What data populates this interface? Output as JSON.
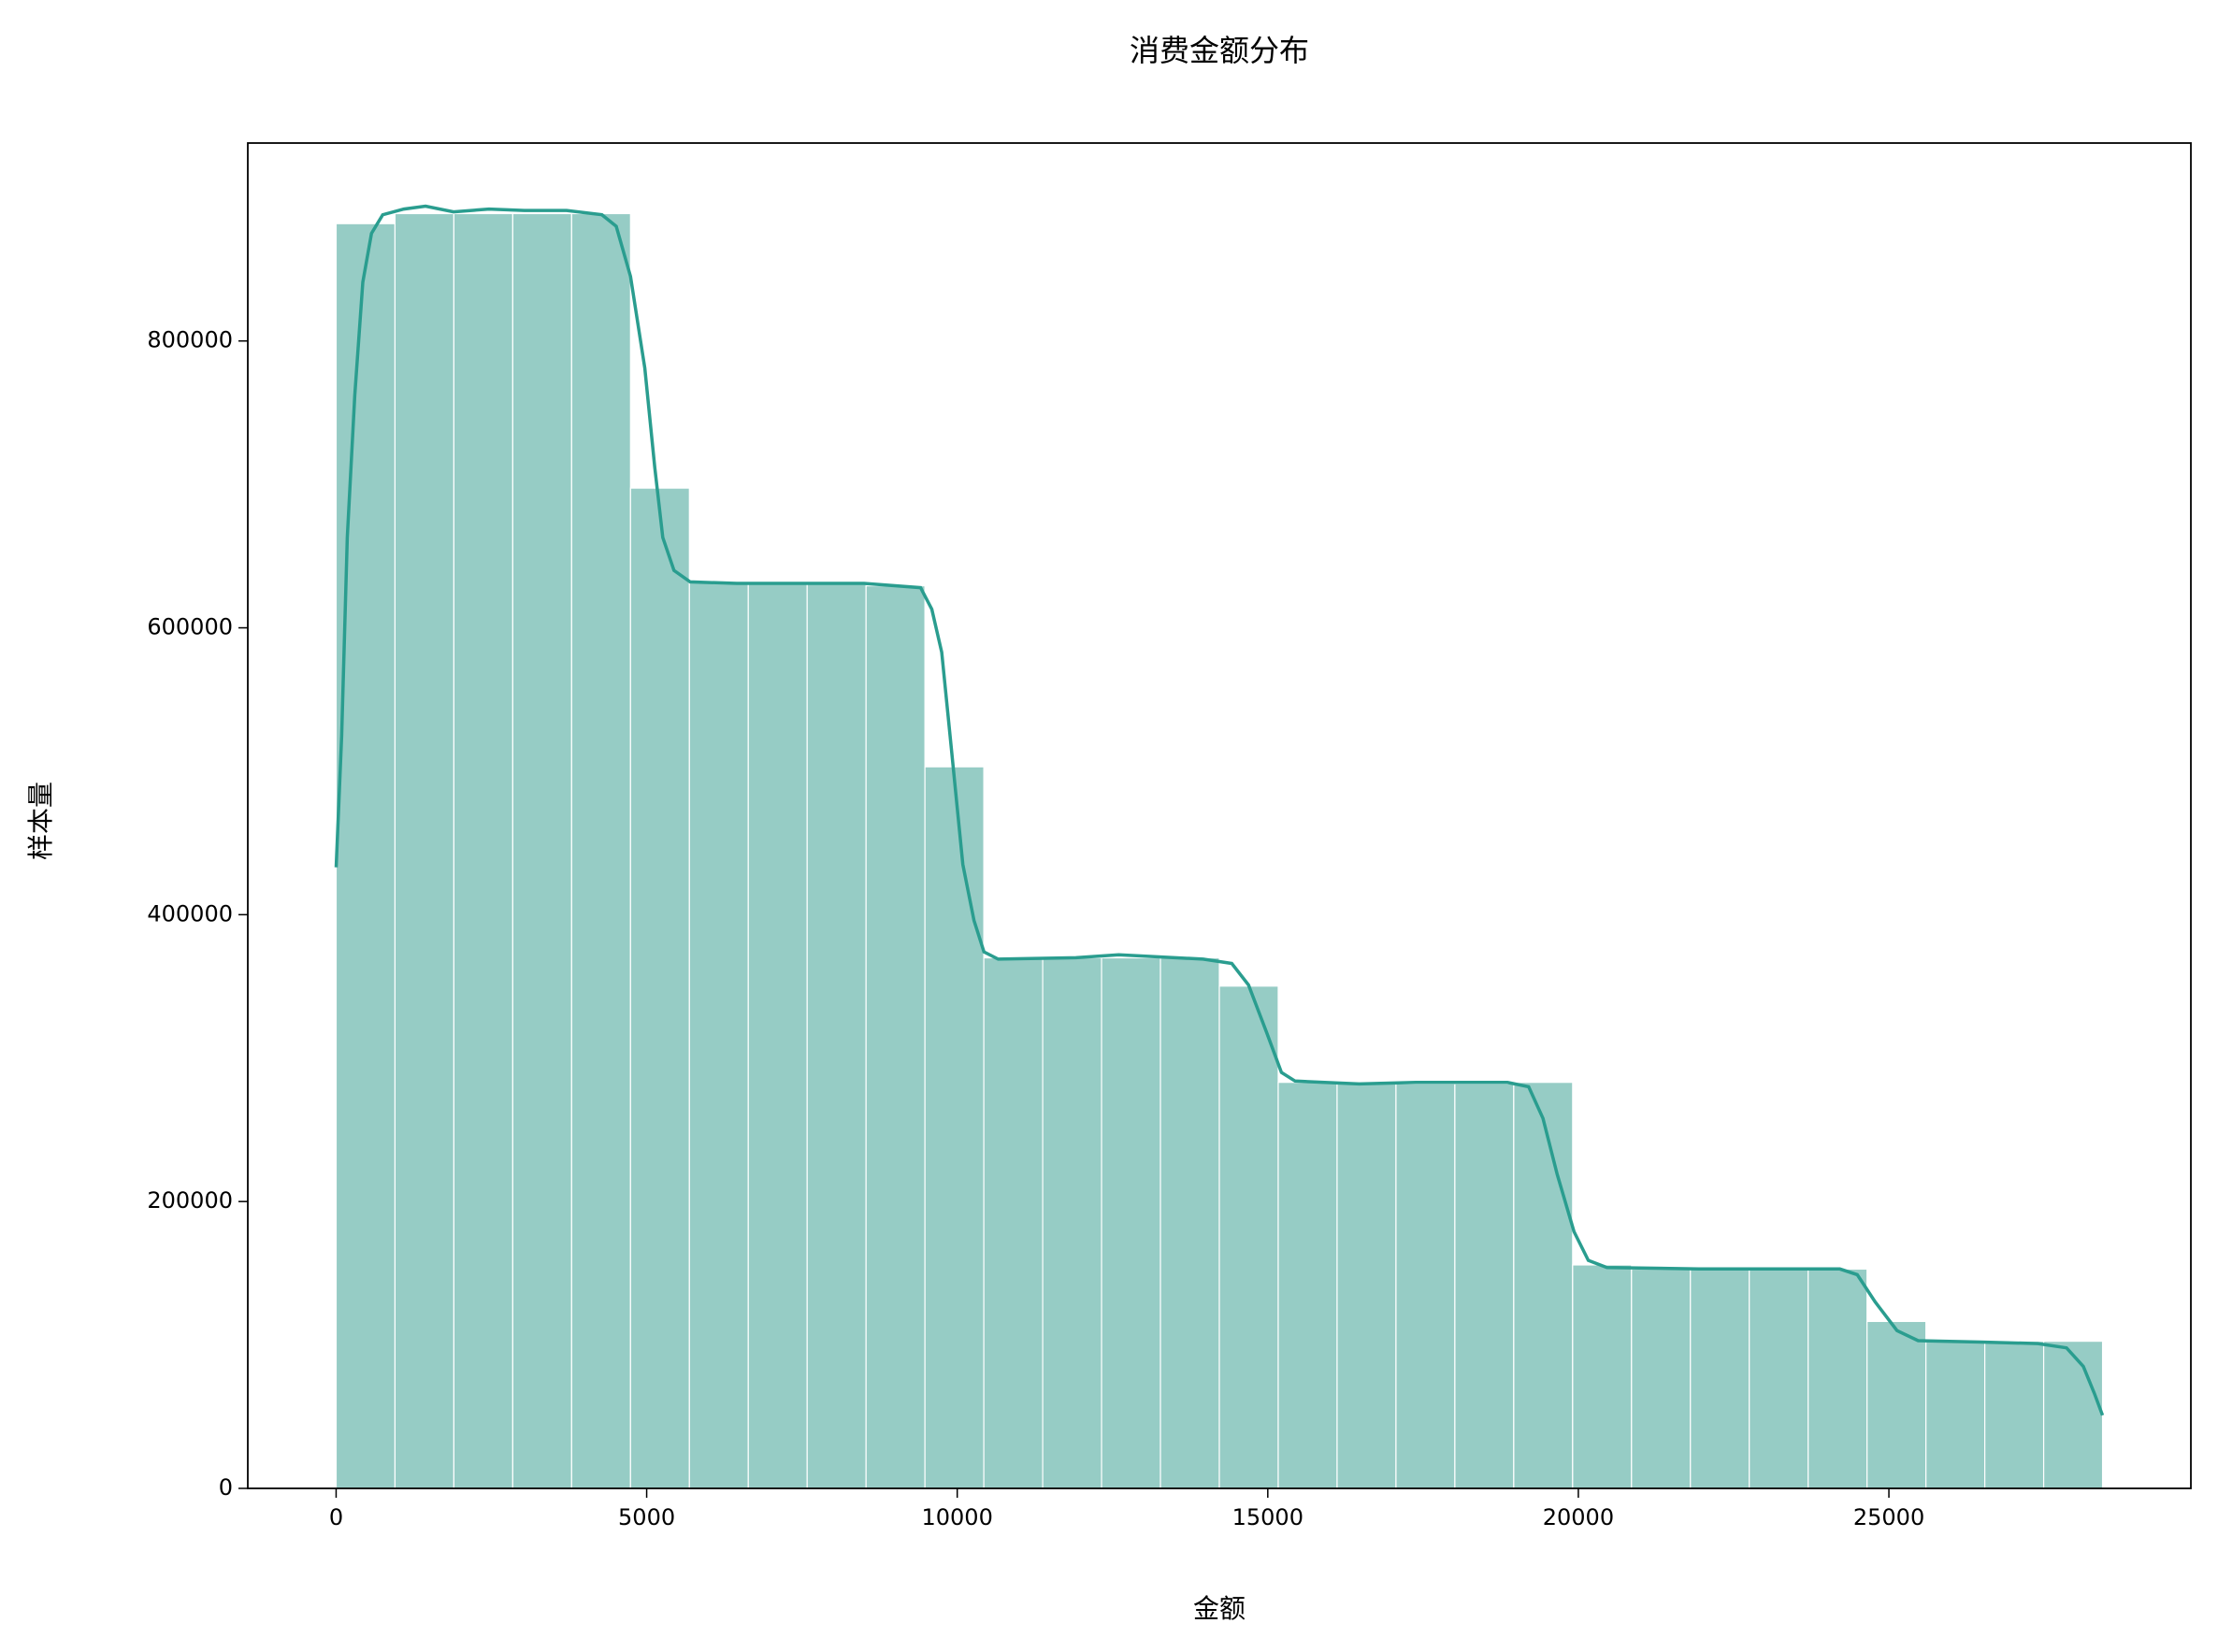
{
  "chart_data": {
    "type": "histogram",
    "title": "消费金额分布",
    "x_label": "金额",
    "y_label": "样本量",
    "bins": [
      0,
      948,
      1896,
      2844,
      3792,
      4740,
      5688,
      6636,
      7584,
      8532,
      9480,
      10428,
      11376,
      12324,
      13272,
      14220,
      15168,
      16116,
      17064,
      18012,
      18960,
      19908,
      20856,
      21804,
      22752,
      23700,
      24648,
      25596,
      26544,
      27492,
      28440
    ],
    "values": [
      881800,
      888800,
      888800,
      888800,
      888800,
      697400,
      632300,
      632300,
      632300,
      629300,
      503100,
      369900,
      369900,
      369900,
      369900,
      350200,
      283100,
      282100,
      282100,
      282100,
      283100,
      155800,
      152900,
      152900,
      152900,
      152900,
      116400,
      102600,
      102600,
      102600
    ],
    "color": "#96ccc5",
    "kde": {
      "color": "#2a9d8f",
      "x": [
        0,
        90,
        180,
        300,
        430,
        570,
        750,
        1090,
        1440,
        1890,
        2460,
        3030,
        3710,
        4280,
        4510,
        4740,
        4970,
        5130,
        5260,
        5440,
        5700,
        6450,
        7360,
        8500,
        9410,
        9590,
        9750,
        9910,
        10090,
        10270,
        10430,
        10660,
        11910,
        12600,
        13960,
        14420,
        14690,
        14990,
        15220,
        15440,
        16470,
        17380,
        18860,
        19200,
        19430,
        19660,
        19930,
        20160,
        20460,
        21940,
        23530,
        24210,
        24490,
        24780,
        25130,
        25470,
        26490,
        27400,
        27860,
        28130,
        28310,
        28440
      ],
      "values": [
        433000,
        525000,
        663000,
        762000,
        841000,
        875000,
        888000,
        892000,
        894000,
        890000,
        892000,
        891000,
        891000,
        888000,
        880000,
        845000,
        781000,
        712000,
        663000,
        640000,
        632000,
        631000,
        631000,
        631000,
        628000,
        613000,
        583000,
        514000,
        435000,
        396000,
        374000,
        369000,
        370000,
        372000,
        369000,
        366000,
        351000,
        317000,
        290000,
        284000,
        282000,
        283000,
        283000,
        280000,
        258000,
        219000,
        179000,
        159000,
        154000,
        153000,
        153000,
        153000,
        149000,
        130000,
        110000,
        103000,
        102000,
        101000,
        98000,
        85000,
        66000,
        51000
      ]
    },
    "xlim": [
      -1422,
      29862
    ],
    "ylim": [
      0,
      938000
    ],
    "xticks": [
      0,
      5000,
      10000,
      15000,
      20000,
      25000
    ],
    "yticks": [
      0,
      200000,
      400000,
      600000,
      800000
    ]
  }
}
